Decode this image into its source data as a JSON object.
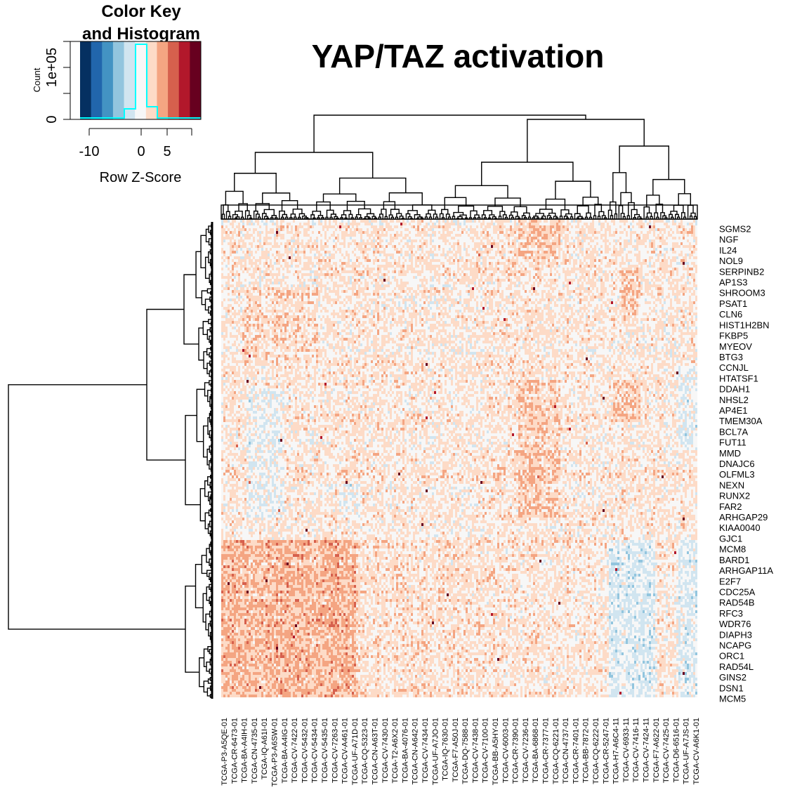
{
  "chart_data": {
    "type": "heatmap",
    "title": "YAP/TAZ activation",
    "color_key": {
      "title_line1": "Color Key",
      "title_line2": "and Histogram",
      "y_axis_label": "Count",
      "y_ticks": [
        "0",
        "1e+05"
      ],
      "x_ticks": [
        -10,
        0,
        5
      ],
      "x_label": "Row Z-Score",
      "range": [
        -12,
        10
      ],
      "colors": [
        "#053061",
        "#2166ac",
        "#4393c3",
        "#92c5de",
        "#d1e5f0",
        "#f7f7f7",
        "#fddbc7",
        "#f4a582",
        "#d6604d",
        "#b2182b",
        "#67001f"
      ],
      "histogram_color": "#00ffff"
    },
    "row_labels": [
      "SGMS2",
      "NGF",
      "IL24",
      "NOL9",
      "SERPINB2",
      "AP1S3",
      "SHROOM3",
      "PSAT1",
      "CLN6",
      "HIST1H2BN",
      "FKBP5",
      "MYEOV",
      "BTG3",
      "CCNJL",
      "HTATSF1",
      "DDAH1",
      "NHSL2",
      "AP4E1",
      "TMEM30A",
      "BCL7A",
      "FUT11",
      "MMD",
      "DNAJC6",
      "OLFML3",
      "NEXN",
      "RUNX2",
      "FAR2",
      "ARHGAP29",
      "KIAA0040",
      "GJC1",
      "MCM8",
      "BARD1",
      "ARHGAP11A",
      "E2F7",
      "CDC25A",
      "RAD54B",
      "RFC3",
      "WDR76",
      "DIAPH3",
      "NCAPG",
      "ORC1",
      "RAD54L",
      "GINS2",
      "DSN1",
      "MCM5"
    ],
    "col_labels": [
      "TCGA-P3-A5QE-01",
      "TCGA-CR-6473-01",
      "TCGA-BA-A4IH-01",
      "TCGA-CN-4735-01",
      "TCGA-IQ-A61I-01",
      "TCGA-P3-A6SW-01",
      "TCGA-BA-A4IG-01",
      "TCGA-CV-7422-01",
      "TCGA-CV-5432-01",
      "TCGA-CV-5434-01",
      "TCGA-CV-5435-01",
      "TCGA-CV-7263-01",
      "TCGA-CV-A461-01",
      "TCGA-UF-A71D-01",
      "TCGA-CQ-5323-01",
      "TCGA-CN-A63T-01",
      "TCGA-CV-7430-01",
      "TCGA-T2-A6X2-01",
      "TCGA-BA-4076-01",
      "TCGA-CN-A642-01",
      "TCGA-CV-7434-01",
      "TCGA-UF-A7JO-01",
      "TCGA-IQ-7630-01",
      "TCGA-F7-A50J-01",
      "TCGA-DQ-7588-01",
      "TCGA-CV-7438-01",
      "TCGA-CV-7100-01",
      "TCGA-BB-A5HY-01",
      "TCGA-CV-6003-01",
      "TCGA-CR-7390-01",
      "TCGA-CV-7236-01",
      "TCGA-BA-6868-01",
      "TCGA-CR-7377-01",
      "TCGA-CQ-6221-01",
      "TCGA-CN-4737-01",
      "TCGA-CR-7401-01",
      "TCGA-BB-7872-01",
      "TCGA-CQ-6222-01",
      "TCGA-CR-5247-01",
      "TCGA-H7-A6C4-11",
      "TCGA-CV-6933-11",
      "TCGA-CV-7416-11",
      "TCGA-CV-7424-11",
      "TCGA-F7-A622-01",
      "TCGA-CV-7425-01",
      "TCGA-D6-6516-01",
      "TCGA-UF-A7JS-01",
      "TCGA-CV-A6K1-01"
    ],
    "grid": false,
    "legend": "top-left"
  }
}
